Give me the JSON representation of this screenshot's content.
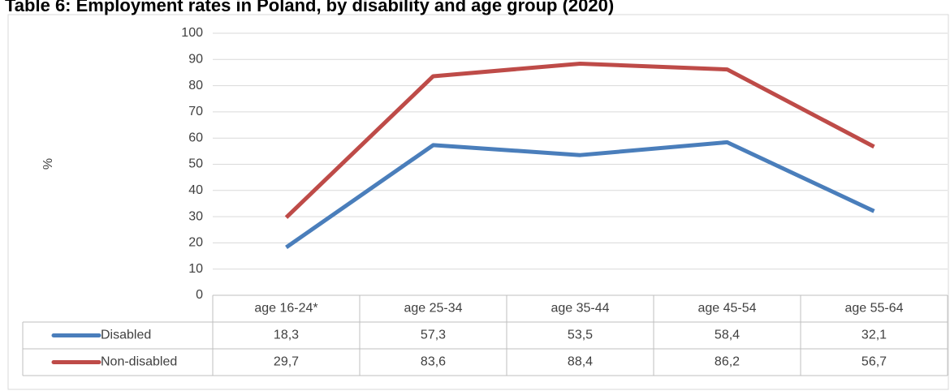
{
  "chart_data": {
    "type": "line",
    "title": "Table 6: Employment rates in Poland, by disability and age group (2020)",
    "y_label": "%",
    "categories": [
      "age 16-24*",
      "age 25-34",
      "age 35-44",
      "age 45-54",
      "age 55-64"
    ],
    "series": [
      {
        "name": "Disabled",
        "color": "#4a7ebb",
        "values": [
          18.3,
          57.3,
          53.5,
          58.4,
          32.1
        ],
        "value_labels": [
          "18,3",
          "57,3",
          "53,5",
          "58,4",
          "32,1"
        ]
      },
      {
        "name": "Non-disabled",
        "color": "#be4b48",
        "values": [
          29.7,
          83.6,
          88.4,
          86.2,
          56.7
        ],
        "value_labels": [
          "29,7",
          "83,6",
          "88,4",
          "86,2",
          "56,7"
        ]
      }
    ],
    "ylim": [
      0,
      100
    ],
    "yticks": [
      0,
      10,
      20,
      30,
      40,
      50,
      60,
      70,
      80,
      90,
      100
    ],
    "grid": true
  }
}
